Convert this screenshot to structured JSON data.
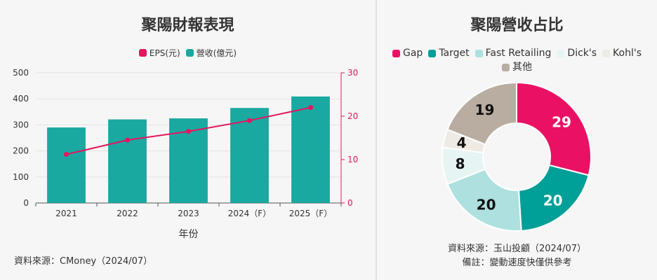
{
  "left": {
    "title": "聚陽財報表現",
    "legend": [
      {
        "label": "EPS(元)",
        "color": "#e5155f"
      },
      {
        "label": "營收(億元)",
        "color": "#1aa9a0"
      }
    ],
    "source": "資料來源：CMoney（2024/07）"
  },
  "right": {
    "title": "聚陽營收占比",
    "source_line1": "資料來源：玉山投顧（2024/07）",
    "source_line2": "備註：變動速度快僅供參考"
  },
  "chart_data": [
    {
      "type": "bar",
      "title": "聚陽財報表現",
      "categories": [
        "2021",
        "2022",
        "2023",
        "2024（F）",
        "2025（F）"
      ],
      "xlabel": "年份",
      "y_left": {
        "ticks": [
          "0",
          "100",
          "200",
          "300",
          "400",
          "500"
        ],
        "min": 0,
        "max": 500
      },
      "y_right": {
        "ticks": [
          "0",
          "10",
          "20",
          "30"
        ],
        "min": 0,
        "max": 30
      },
      "series": [
        {
          "name": "營收(億元)",
          "kind": "bar",
          "axis": "left",
          "color": "#1aa9a0",
          "values": [
            290,
            321,
            325,
            365,
            409
          ]
        },
        {
          "name": "EPS(元)",
          "kind": "line",
          "axis": "right",
          "color": "#e5155f",
          "values": [
            11.2,
            14.5,
            16.5,
            19.0,
            22.0
          ]
        }
      ],
      "legend_position": "top"
    },
    {
      "type": "pie",
      "title": "聚陽營收占比",
      "donut": true,
      "slices": [
        {
          "label": "Gap",
          "value": 29,
          "color": "#ea1164",
          "text_color": "#ffffff"
        },
        {
          "label": "Target",
          "value": 20,
          "color": "#009f97",
          "text_color": "#ffffff"
        },
        {
          "label": "Fast Retailing",
          "value": 20,
          "color": "#ade0df",
          "text_color": "#111111"
        },
        {
          "label": "Dick's",
          "value": 8,
          "color": "#e6f4f3",
          "text_color": "#111111"
        },
        {
          "label": "Kohl's",
          "value": 4,
          "color": "#eeeae4",
          "text_color": "#111111"
        },
        {
          "label": "其他",
          "value": 19,
          "color": "#b9ada1",
          "text_color": "#111111"
        }
      ],
      "legend_position": "top"
    }
  ]
}
